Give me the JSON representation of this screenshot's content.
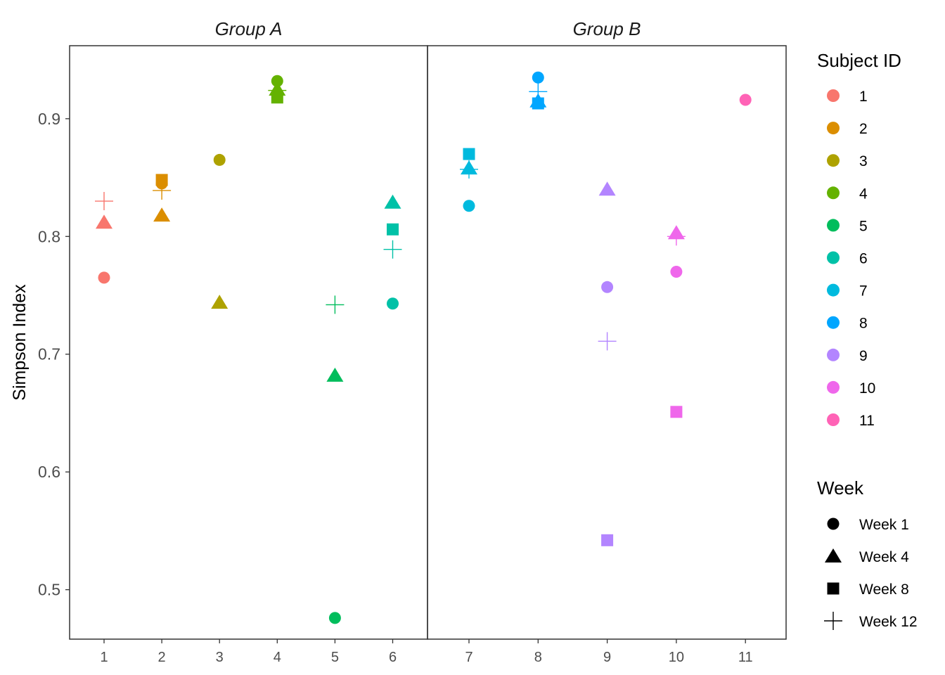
{
  "chart_data": {
    "type": "scatter",
    "ylabel": "Simpson Index",
    "xlabel": "",
    "ylim": [
      0.458,
      0.962
    ],
    "y_ticks": [
      0.5,
      0.6,
      0.7,
      0.8,
      0.9
    ],
    "y_tick_labels": [
      "0.5",
      "0.6",
      "0.7",
      "0.8",
      "0.9"
    ],
    "panels": [
      {
        "title": "Group A",
        "subjects": [
          "1",
          "2",
          "3",
          "4",
          "5",
          "6"
        ]
      },
      {
        "title": "Group B",
        "subjects": [
          "7",
          "8",
          "9",
          "10",
          "11"
        ]
      }
    ],
    "legend_color": {
      "title": "Subject ID",
      "placement": "right",
      "entries": [
        {
          "label": "1",
          "color": "#F8766D"
        },
        {
          "label": "2",
          "color": "#DB8E00"
        },
        {
          "label": "3",
          "color": "#AEA200"
        },
        {
          "label": "4",
          "color": "#64B200"
        },
        {
          "label": "5",
          "color": "#00BD5C"
        },
        {
          "label": "6",
          "color": "#00C1A7"
        },
        {
          "label": "7",
          "color": "#00BADE"
        },
        {
          "label": "8",
          "color": "#00A6FF"
        },
        {
          "label": "9",
          "color": "#B385FF"
        },
        {
          "label": "10",
          "color": "#EF67EB"
        },
        {
          "label": "11",
          "color": "#FF63B6"
        }
      ]
    },
    "legend_shape": {
      "title": "Week",
      "placement": "right",
      "entries": [
        {
          "label": "Week 1",
          "shape": "circle"
        },
        {
          "label": "Week 4",
          "shape": "triangle"
        },
        {
          "label": "Week 8",
          "shape": "square"
        },
        {
          "label": "Week 12",
          "shape": "plus"
        }
      ]
    },
    "points": [
      {
        "subject": "1",
        "week": "Week 1",
        "value": 0.765
      },
      {
        "subject": "1",
        "week": "Week 4",
        "value": 0.812
      },
      {
        "subject": "1",
        "week": "Week 12",
        "value": 0.83
      },
      {
        "subject": "2",
        "week": "Week 1",
        "value": 0.845
      },
      {
        "subject": "2",
        "week": "Week 4",
        "value": 0.818
      },
      {
        "subject": "2",
        "week": "Week 8",
        "value": 0.848
      },
      {
        "subject": "2",
        "week": "Week 12",
        "value": 0.839
      },
      {
        "subject": "3",
        "week": "Week 1",
        "value": 0.865
      },
      {
        "subject": "3",
        "week": "Week 4",
        "value": 0.744
      },
      {
        "subject": "4",
        "week": "Week 1",
        "value": 0.932
      },
      {
        "subject": "4",
        "week": "Week 4",
        "value": 0.925
      },
      {
        "subject": "4",
        "week": "Week 8",
        "value": 0.918
      },
      {
        "subject": "4",
        "week": "Week 12",
        "value": 0.924
      },
      {
        "subject": "5",
        "week": "Week 1",
        "value": 0.476
      },
      {
        "subject": "5",
        "week": "Week 4",
        "value": 0.682
      },
      {
        "subject": "5",
        "week": "Week 12",
        "value": 0.742
      },
      {
        "subject": "6",
        "week": "Week 1",
        "value": 0.743
      },
      {
        "subject": "6",
        "week": "Week 4",
        "value": 0.829
      },
      {
        "subject": "6",
        "week": "Week 8",
        "value": 0.806
      },
      {
        "subject": "6",
        "week": "Week 12",
        "value": 0.789
      },
      {
        "subject": "7",
        "week": "Week 1",
        "value": 0.826
      },
      {
        "subject": "7",
        "week": "Week 4",
        "value": 0.858
      },
      {
        "subject": "7",
        "week": "Week 8",
        "value": 0.87
      },
      {
        "subject": "7",
        "week": "Week 12",
        "value": 0.857
      },
      {
        "subject": "8",
        "week": "Week 1",
        "value": 0.935
      },
      {
        "subject": "8",
        "week": "Week 4",
        "value": 0.915
      },
      {
        "subject": "8",
        "week": "Week 8",
        "value": 0.913
      },
      {
        "subject": "8",
        "week": "Week 12",
        "value": 0.923
      },
      {
        "subject": "9",
        "week": "Week 1",
        "value": 0.757
      },
      {
        "subject": "9",
        "week": "Week 4",
        "value": 0.84
      },
      {
        "subject": "9",
        "week": "Week 8",
        "value": 0.542
      },
      {
        "subject": "9",
        "week": "Week 12",
        "value": 0.711
      },
      {
        "subject": "10",
        "week": "Week 1",
        "value": 0.77
      },
      {
        "subject": "10",
        "week": "Week 4",
        "value": 0.803
      },
      {
        "subject": "10",
        "week": "Week 8",
        "value": 0.651
      },
      {
        "subject": "10",
        "week": "Week 12",
        "value": 0.8
      },
      {
        "subject": "11",
        "week": "Week 1",
        "value": 0.916
      }
    ]
  }
}
